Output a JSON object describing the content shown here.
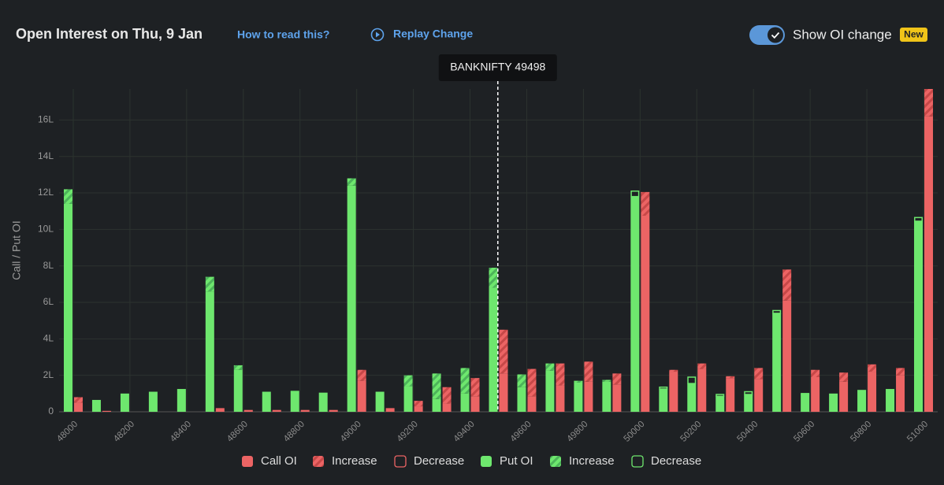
{
  "header": {
    "title": "Open Interest on Thu, 9 Jan",
    "help_link": "How to read this?",
    "replay": "Replay Change",
    "toggle_label": "Show OI change",
    "badge": "New"
  },
  "chart_data": {
    "type": "bar",
    "ylabel": "Call / Put OI",
    "x": [
      48000,
      48100,
      48200,
      48300,
      48400,
      48500,
      48600,
      48700,
      48800,
      48900,
      49000,
      49100,
      49200,
      49300,
      49400,
      49500,
      49600,
      49700,
      49800,
      49900,
      50000,
      50100,
      50200,
      50300,
      50400,
      50500,
      50600,
      50700,
      50800,
      50900,
      51000
    ],
    "xlim": [
      47950,
      51050
    ],
    "xticks": [
      48000,
      48200,
      48400,
      48600,
      48800,
      49000,
      49200,
      49400,
      49600,
      49800,
      50000,
      50200,
      50400,
      50600,
      50800,
      51000
    ],
    "ylim": [
      0,
      17.7
    ],
    "yticks": [
      0,
      {
        "value": 2,
        "label": "2L"
      },
      {
        "value": 4,
        "label": "4L"
      },
      {
        "value": 6,
        "label": "6L"
      },
      {
        "value": 8,
        "label": "8L"
      },
      {
        "value": 10,
        "label": "10L"
      },
      {
        "value": 12,
        "label": "12L"
      },
      {
        "value": 14,
        "label": "14L"
      },
      {
        "value": 16,
        "label": "16L"
      }
    ],
    "grid": true,
    "spot": {
      "label": "BANKNIFTY 49498",
      "value": 49498
    },
    "series": [
      {
        "name": "Call OI",
        "color": "#ec6464",
        "values": [
          0.5,
          0.05,
          0,
          0,
          0,
          0.2,
          0.1,
          0.1,
          0.1,
          0.1,
          1.7,
          0.2,
          0.3,
          0.45,
          0.85,
          2.1,
          0.85,
          1.45,
          1.65,
          1.5,
          10.75,
          2.2,
          2.35,
          1.85,
          1.8,
          6.1,
          1.9,
          1.65,
          2.2,
          2.0,
          16.2
        ]
      },
      {
        "name": "Increase",
        "color": "#ec6464",
        "values": [
          0.3,
          null,
          null,
          null,
          null,
          null,
          null,
          null,
          null,
          null,
          0.6,
          null,
          0.3,
          0.9,
          1.0,
          2.4,
          1.5,
          1.2,
          1.1,
          0.6,
          1.3,
          0.1,
          0.3,
          0.1,
          0.6,
          1.7,
          0.4,
          0.5,
          0.4,
          0.4,
          1.5
        ]
      },
      {
        "name": "Decrease",
        "color": "#ec6464",
        "values": [
          null,
          null,
          null,
          null,
          null,
          null,
          null,
          null,
          null,
          null,
          null,
          null,
          null,
          null,
          null,
          null,
          null,
          null,
          null,
          null,
          null,
          null,
          null,
          null,
          null,
          null,
          null,
          null,
          null,
          null,
          null
        ]
      },
      {
        "name": "Put OI",
        "color": "#6ee76e",
        "values": [
          11.4,
          0.65,
          1.0,
          1.1,
          1.25,
          6.6,
          2.3,
          1.1,
          1.15,
          1.05,
          12.4,
          1.1,
          1.4,
          0.7,
          1.0,
          6.8,
          1.35,
          2.25,
          1.6,
          1.65,
          11.8,
          1.25,
          1.55,
          0.85,
          0.95,
          5.4,
          0.95,
          1.0,
          1.2,
          1.25,
          10.45
        ]
      },
      {
        "name": "Increase",
        "color": "#6ee76e",
        "values": [
          0.8,
          null,
          null,
          null,
          null,
          0.8,
          0.25,
          null,
          null,
          null,
          0.4,
          null,
          0.6,
          1.4,
          1.4,
          1.1,
          0.7,
          0.4,
          0.1,
          0.1,
          null,
          null,
          null,
          null,
          null,
          null,
          null,
          null,
          null,
          null,
          null
        ]
      },
      {
        "name": "Decrease",
        "color": "#6ee76e",
        "values": [
          null,
          null,
          null,
          null,
          null,
          null,
          null,
          null,
          null,
          null,
          null,
          null,
          null,
          null,
          null,
          null,
          null,
          null,
          null,
          null,
          0.3,
          0.1,
          0.35,
          0.1,
          0.15,
          0.15,
          0.05,
          null,
          null,
          null,
          0.2
        ]
      }
    ]
  }
}
